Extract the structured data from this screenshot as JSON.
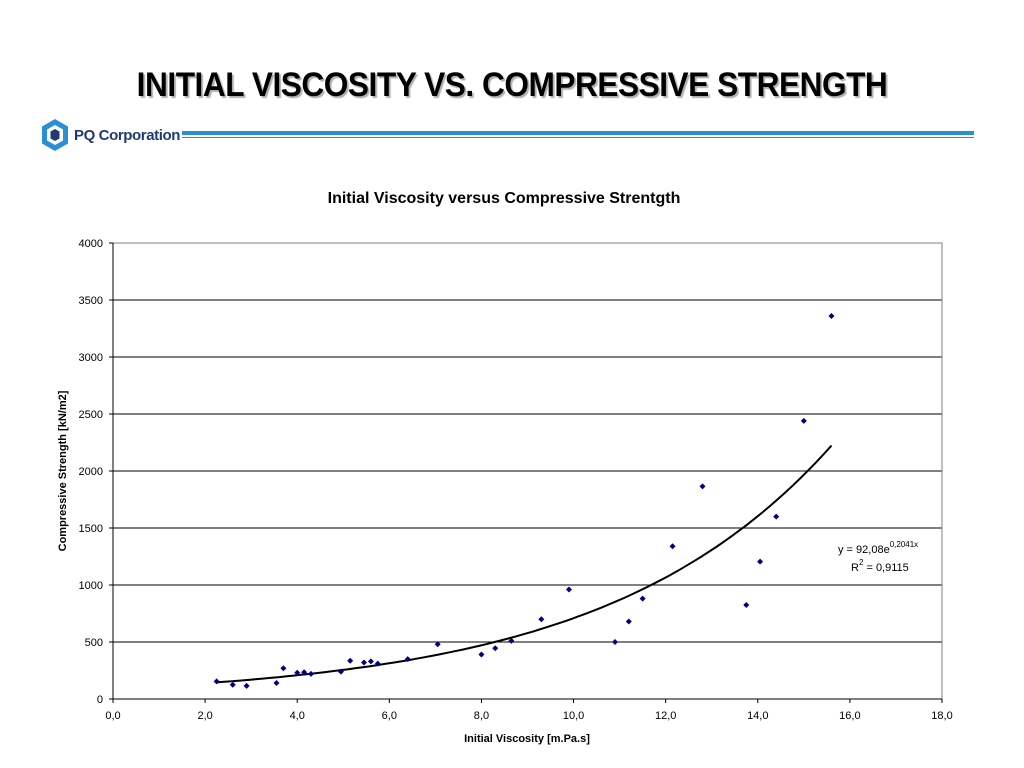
{
  "slide": {
    "title": "INITIAL VISCOSITY VS. COMPRESSIVE STRENGTH",
    "logo_text": "PQ Corporation",
    "accent_color": "#2b8fd6",
    "logo_color": "#1f3b73"
  },
  "chart_data": {
    "type": "scatter",
    "title": "Initial Viscosity versus Compressive Strentgth",
    "xlabel": "Initial Viscosity [m.Pa.s]",
    "ylabel": "Compressive Strength [kN/m2]",
    "xlim": [
      0,
      18
    ],
    "ylim": [
      0,
      4000
    ],
    "x_ticks": [
      "0,0",
      "2,0",
      "4,0",
      "6,0",
      "8,0",
      "10,0",
      "12,0",
      "14,0",
      "16,0",
      "18,0"
    ],
    "y_ticks": [
      "0",
      "500",
      "1000",
      "1500",
      "2000",
      "2500",
      "3000",
      "3500",
      "4000"
    ],
    "grid": "horizontal",
    "marker_color": "#000080",
    "series": [
      {
        "points": [
          [
            2.25,
            155
          ],
          [
            2.6,
            125
          ],
          [
            2.9,
            115
          ],
          [
            3.55,
            140
          ],
          [
            3.7,
            270
          ],
          [
            4.0,
            230
          ],
          [
            4.15,
            235
          ],
          [
            4.3,
            220
          ],
          [
            4.95,
            240
          ],
          [
            5.15,
            335
          ],
          [
            5.45,
            320
          ],
          [
            5.6,
            330
          ],
          [
            5.75,
            310
          ],
          [
            6.4,
            350
          ],
          [
            7.05,
            480
          ],
          [
            8.0,
            390
          ],
          [
            8.3,
            445
          ],
          [
            8.65,
            510
          ],
          [
            9.3,
            700
          ],
          [
            9.9,
            960
          ],
          [
            10.9,
            500
          ],
          [
            11.2,
            680
          ],
          [
            11.5,
            880
          ],
          [
            12.15,
            1340
          ],
          [
            12.8,
            1865
          ],
          [
            13.75,
            825
          ],
          [
            14.05,
            1205
          ],
          [
            14.4,
            1600
          ],
          [
            15.0,
            2440
          ],
          [
            15.6,
            3360
          ]
        ]
      }
    ],
    "trendline": {
      "type": "exponential",
      "a": 92.08,
      "b": 0.2041,
      "x_range": [
        2.25,
        15.6
      ],
      "equation_prefix": "y = 92,08e",
      "equation_exponent": "0,2041x",
      "r2_prefix": "R",
      "r2_exponent": "2",
      "r2_value": " = 0,9115"
    }
  }
}
